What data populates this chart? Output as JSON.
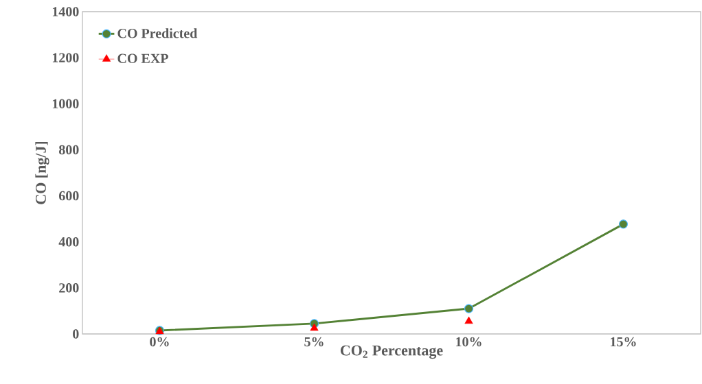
{
  "chart_data": {
    "type": "line",
    "xlabel": "CO$_{2}$ Percentage",
    "ylabel": "CO [ng/J]",
    "categories": [
      "0%",
      "5%",
      "10%",
      "15%"
    ],
    "series": [
      {
        "name": "CO Predicted",
        "color": "#548235",
        "marker": "circle",
        "line_style": "solid",
        "values": [
          15,
          45,
          110,
          477
        ]
      },
      {
        "name": "CO EXP",
        "type": "scatter",
        "color": "#ff0000",
        "marker": "triangle",
        "values": [
          10,
          25,
          55,
          null
        ]
      }
    ],
    "ylim": [
      0,
      1400
    ],
    "yticks": [
      0,
      200,
      400,
      600,
      800,
      1000,
      1200,
      1400
    ],
    "grid": false,
    "legend": "top left"
  }
}
